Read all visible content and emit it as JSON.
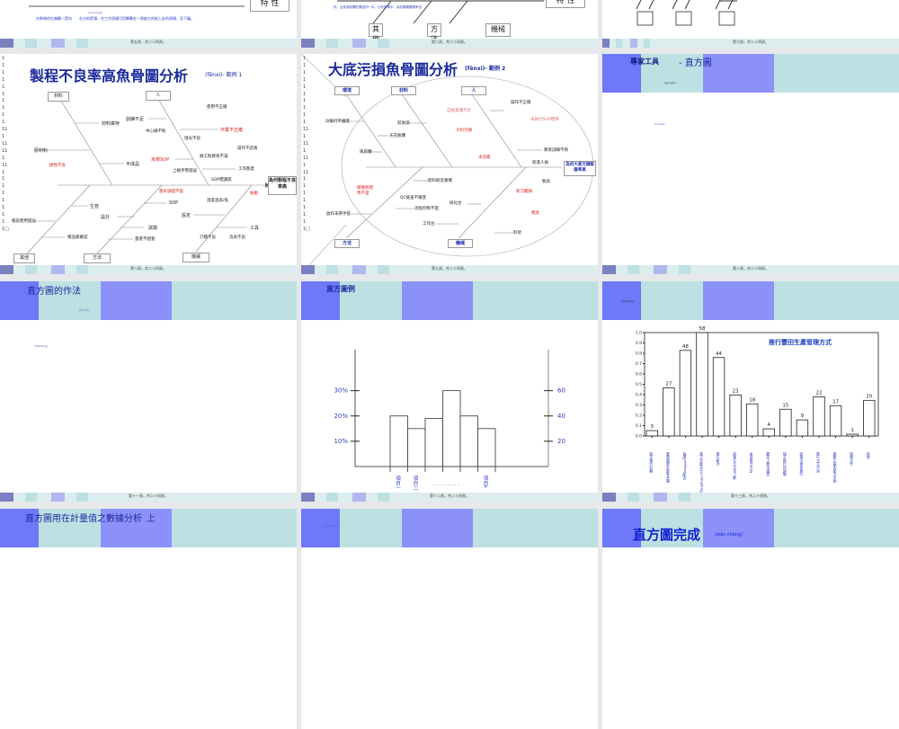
{
  "slides": {
    "s5": {
      "feature_box": "特 性",
      "pinyin": "(shì xiàng)",
      "body": "在幹線的右端劃一箭向　　右方的箭頭，在工作現場可用筆劃在一張較大的紙上彩的現場，見下圖。",
      "footer": "第五頁，共二十四頁。"
    },
    "s6": {
      "feature_box": "特 性",
      "body": "件，且有其影響的原因列一中，小的魚骨中，為該果屬要素有言。",
      "box1": "其他",
      "box2": "方法",
      "box3": "機械",
      "footer": "第六頁，共二十四頁。"
    },
    "s7": {
      "footer": "第七頁，共二十四頁。"
    },
    "s8": {
      "title": "製程不良率高魚骨圖分析",
      "title_suffix": "(fēnxi)- 範例 1",
      "line_numbers": "1\n1\n1\n1\n1\n1\n1\n1\n1\n1\n11\n1\n11\n11\n1\n11\n1\n1\n1\n1\n1\n1\n1\n1\n1□",
      "effect": "為何製程不良率高",
      "categories": [
        "材料",
        "人",
        "其他",
        "方法",
        "機械"
      ],
      "labels": [
        "訓練不足",
        "材料庫存",
        "原材料",
        "半成品",
        "未按SOP",
        "作業不正確",
        "工作態度",
        "SOP",
        "生管",
        "設計",
        "設定",
        "工具",
        "試做",
        "量產不配套",
        "樣品無確認",
        "檯前使用錯誤",
        "硬性不良",
        "使用不正確",
        "需水調配不當",
        "振動",
        "中心線不對",
        "燈光不良",
        "員工對教育不滿",
        "操作不認真",
        "上線手勢錯誤",
        "SOP標識錯",
        "溫度過高/低",
        "治具不良",
        "刀模不良"
      ],
      "footer": "第八頁，共二十四頁。"
    },
    "s9": {
      "title": "大底污損魚骨圖分析",
      "title_suffix": "(fēnxi)- 範例 2",
      "line_numbers": "1\n1\n1\n1\n1\n1\n1\n1\n1\n1\n11\n1\n11\n1\n11\n1\n11\n1\n1\n1\n1\n1\n1\n1\n1□",
      "effect": "為何大底污損報廢率高",
      "categories": [
        "環境",
        "材料",
        "人",
        "方法",
        "機械"
      ],
      "labels": [
        "冷暖行不徹底",
        "天花板髒",
        "風扇髒",
        "前後調",
        "自檢意識不足",
        "未執行SOP標準",
        "大料污損",
        "教育訓練不夠",
        "未追蹤",
        "膠料刷塗重擦",
        "製具",
        "新刀變損",
        "模具",
        "流程控制不當",
        "放料未帶手套",
        "擦模劑使用不當",
        "工作台",
        "研化台",
        "料架",
        "操作不正確",
        "新進人員",
        "QC檢查不徹底"
      ],
      "footer": "第九頁，共二十四頁。"
    },
    "s10": {
      "title": "專家工具",
      "title_suffix": "- 直方圖",
      "pinyin": "(gōngjù)",
      "pinyin2": "(niúpái)",
      "footer": "第十頁，共二十四頁。"
    },
    "s11": {
      "title": "直方圖的作法",
      "pinyin": "(zuò fǎ)",
      "pinyin2": "(fāshēng)",
      "footer": "第十一頁，共二十四頁。"
    },
    "s12": {
      "title": "直方圖例",
      "footer": "第十二頁，共二十四頁。"
    },
    "s13": {
      "pinyin": "(tǔzhēng)",
      "footer": "第十三頁，共二十四頁。"
    },
    "s14": {
      "title": "直方圖用在計量值之數據分析",
      "title_tail": "上"
    },
    "s15": {
      "pinyin": "(shēnxiān)"
    },
    "s16": {
      "title": "直方圖完成",
      "pinyin": "(wán chéng)"
    }
  },
  "chart_data": [
    {
      "type": "bar",
      "title": "直方圖例",
      "categories": [
        "項目一",
        "項目二",
        "",
        "",
        "",
        "項目k"
      ],
      "dots": "．．．．．．．．．",
      "values": [
        20,
        15,
        19,
        30,
        20,
        15
      ],
      "left_ticks": [
        "10%",
        "20%",
        "30%"
      ],
      "right_ticks": [
        "20",
        "40",
        "60"
      ],
      "ylim": [
        0,
        40
      ]
    },
    {
      "type": "bar",
      "title": "推行豐田生產管理方式",
      "categories": [
        "缺乏推行計劃",
        "管理階層未能有共識",
        "協調(xiétiáo)配合",
        "員工不能充分(chōngfèn)配合",
        "推行能力",
        "對推行方式不了解",
        "本身能力不足",
        "觀念上無法接受",
        "缺乏推行的經驗",
        "認為不適合推行",
        "推行方式不對",
        "推動人員的能力不夠",
        "時間太忙",
        "其他"
      ],
      "values": [
        3,
        27,
        48,
        58,
        44,
        23,
        18,
        4,
        15,
        9,
        22,
        17,
        1,
        20
      ],
      "value_labels": [
        "3",
        "27",
        "48",
        "58",
        "44",
        "23",
        "18",
        "4",
        "15",
        "9",
        "22",
        "17",
        "1",
        "20"
      ],
      "y_ticks": [
        "0.0",
        "0.1",
        "0.2",
        "0.3",
        "0.4",
        "0.5",
        "0.6",
        "0.7",
        "0.8",
        "0.9",
        "1.0"
      ],
      "ylim": [
        0,
        58
      ]
    }
  ]
}
